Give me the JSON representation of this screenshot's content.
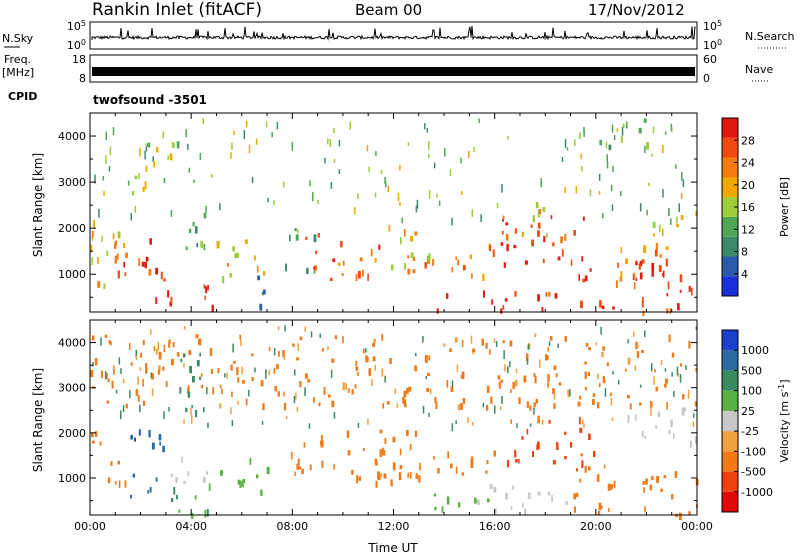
{
  "header": {
    "station": "Rankin Inlet (fitACF)",
    "beam": "Beam 00",
    "date": "17/Nov/2012"
  },
  "strips": {
    "nsky_label": "N.Sky",
    "nsearch_label": "N.Search",
    "nsky_ticks": [
      "10^5",
      "10^0"
    ],
    "nsearch_ticks": [
      "10^5",
      "10^0"
    ],
    "freq_label_line1": "Freq.",
    "freq_label_line2": "[MHz]",
    "freq_ticks": [
      "18",
      "8"
    ],
    "nave_label": "Nave",
    "nave_ticks": [
      "60",
      "0"
    ],
    "cpid_label": "CPID",
    "cpid_value": "twofsound -3501"
  },
  "colors": {
    "power_scale": [
      "#1a2fd6",
      "#2a5aa8",
      "#3c8a6a",
      "#4fa655",
      "#9ccc3a",
      "#f0a800",
      "#f57a10",
      "#f04a10",
      "#e01a10"
    ],
    "velocity_scale": [
      "#1a3fc8",
      "#2a6aa0",
      "#3a8a60",
      "#58b040",
      "#c8c8c8",
      "#f0a040",
      "#f07a18",
      "#f04010",
      "#e00808"
    ]
  },
  "chart_data": [
    {
      "type": "heatmap",
      "name": "power-panel",
      "ylabel": "Slant Range [km]",
      "xlabel": "",
      "x_ticks": [
        "00:00",
        "04:00",
        "08:00",
        "12:00",
        "16:00",
        "20:00",
        "00:00"
      ],
      "y_ticks": [
        1000,
        2000,
        3000,
        4000
      ],
      "xlim": [
        0,
        24
      ],
      "ylim": [
        180,
        4500
      ],
      "colorbar": {
        "label": "Power [dB]",
        "ticks": [
          4,
          8,
          12,
          16,
          20,
          24,
          28
        ],
        "range": [
          0,
          32
        ]
      },
      "blobs": [
        {
          "t0": 0.0,
          "t1": 1.5,
          "r0": 600,
          "r1": 2200,
          "level": 20
        },
        {
          "t0": 0.8,
          "t1": 2.4,
          "r0": 900,
          "r1": 2100,
          "level": 24
        },
        {
          "t0": 2.0,
          "t1": 3.2,
          "r0": 500,
          "r1": 1600,
          "level": 28
        },
        {
          "t0": 3.0,
          "t1": 5.0,
          "r0": 200,
          "r1": 900,
          "level": 28
        },
        {
          "t0": 3.5,
          "t1": 4.5,
          "r0": 1200,
          "r1": 2600,
          "level": 12
        },
        {
          "t0": 5.0,
          "t1": 7.0,
          "r0": 800,
          "r1": 1800,
          "level": 20
        },
        {
          "t0": 6.5,
          "t1": 7.3,
          "r0": 300,
          "r1": 1300,
          "level": 8
        },
        {
          "t0": 7.5,
          "t1": 9.0,
          "r0": 1100,
          "r1": 2100,
          "level": 12
        },
        {
          "t0": 8.5,
          "t1": 11.5,
          "r0": 900,
          "r1": 1900,
          "level": 24
        },
        {
          "t0": 11.0,
          "t1": 13.5,
          "r0": 1100,
          "r1": 2100,
          "level": 20
        },
        {
          "t0": 12.5,
          "t1": 16.0,
          "r0": 1000,
          "r1": 1700,
          "level": 24
        },
        {
          "t0": 13.5,
          "t1": 18.5,
          "r0": 250,
          "r1": 700,
          "level": 28
        },
        {
          "t0": 16.0,
          "t1": 19.5,
          "r0": 1100,
          "r1": 2400,
          "level": 28
        },
        {
          "t0": 17.0,
          "t1": 19.0,
          "r0": 1800,
          "r1": 2600,
          "level": 20
        },
        {
          "t0": 19.0,
          "t1": 24.0,
          "r0": 200,
          "r1": 1300,
          "level": 28
        },
        {
          "t0": 20.5,
          "t1": 23.5,
          "r0": 800,
          "r1": 1800,
          "level": 24
        },
        {
          "t0": 22.0,
          "t1": 24.0,
          "r0": 1800,
          "r1": 2600,
          "level": 16
        },
        {
          "t0": 1.5,
          "t1": 3.5,
          "r0": 2700,
          "r1": 3900,
          "level": 16
        },
        {
          "t0": 20.0,
          "t1": 22.0,
          "r0": 3600,
          "r1": 4400,
          "level": 12
        }
      ]
    },
    {
      "type": "heatmap",
      "name": "velocity-panel",
      "ylabel": "Slant Range [km]",
      "xlabel": "Time UT",
      "x_ticks": [
        "00:00",
        "04:00",
        "08:00",
        "12:00",
        "16:00",
        "20:00",
        "00:00"
      ],
      "y_ticks": [
        1000,
        2000,
        3000,
        4000
      ],
      "xlim": [
        0,
        24
      ],
      "ylim": [
        180,
        4500
      ],
      "colorbar": {
        "label": "Velocity [m s^-1]",
        "ticks": [
          "1000",
          "500",
          "100",
          "25",
          "-25",
          "-100",
          "-500",
          "-1000"
        ]
      },
      "blobs": [
        {
          "t0": 0.0,
          "t1": 1.5,
          "r0": 900,
          "r1": 2100,
          "level": -300
        },
        {
          "t0": 1.5,
          "t1": 3.0,
          "r0": 600,
          "r1": 2100,
          "level": 800
        },
        {
          "t0": 2.8,
          "t1": 5.0,
          "r0": 200,
          "r1": 900,
          "level": 80
        },
        {
          "t0": 3.0,
          "t1": 4.8,
          "r0": 900,
          "r1": 1600,
          "level": 0
        },
        {
          "t0": 3.5,
          "t1": 4.5,
          "r0": 1600,
          "r1": 3900,
          "level": 300
        },
        {
          "t0": 5.0,
          "t1": 7.0,
          "r0": 700,
          "r1": 1500,
          "level": 60
        },
        {
          "t0": 7.5,
          "t1": 13.0,
          "r0": 1000,
          "r1": 2100,
          "level": -300
        },
        {
          "t0": 11.0,
          "t1": 16.0,
          "r0": 900,
          "r1": 1700,
          "level": -200
        },
        {
          "t0": 13.0,
          "t1": 16.0,
          "r0": 250,
          "r1": 700,
          "level": 60
        },
        {
          "t0": 16.0,
          "t1": 20.0,
          "r0": 1200,
          "r1": 2400,
          "level": -700
        },
        {
          "t0": 15.0,
          "t1": 19.0,
          "r0": 250,
          "r1": 900,
          "level": 0
        },
        {
          "t0": 19.0,
          "t1": 24.0,
          "r0": 200,
          "r1": 1300,
          "level": -300
        },
        {
          "t0": 21.0,
          "t1": 24.0,
          "r0": 1800,
          "r1": 2600,
          "level": 0
        },
        {
          "t0": 0.0,
          "t1": 24.0,
          "r0": 2600,
          "r1": 4200,
          "level": -150
        }
      ]
    }
  ]
}
